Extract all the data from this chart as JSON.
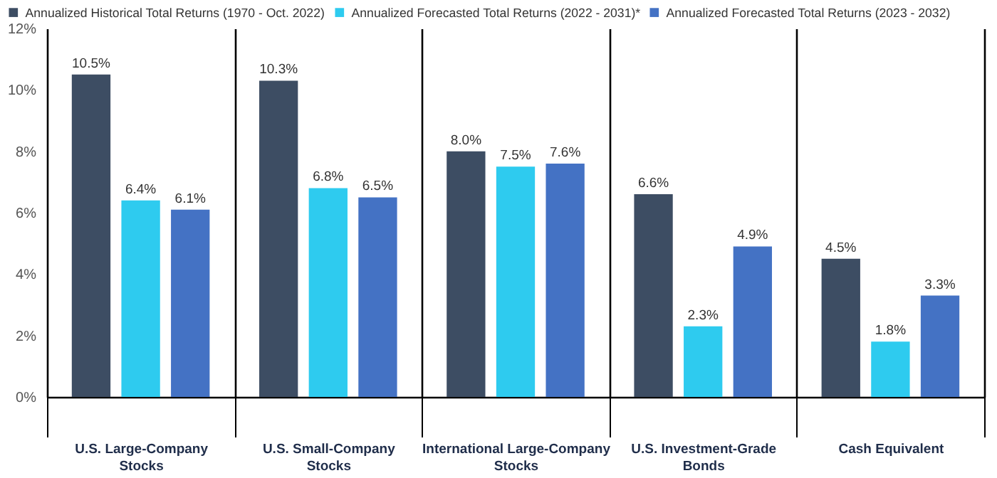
{
  "chart_data": {
    "type": "bar",
    "categories": [
      "U.S. Large-Company Stocks",
      "U.S. Small-Company Stocks",
      "International Large-Company Stocks",
      "U.S. Investment-Grade Bonds",
      "Cash Equivalent"
    ],
    "series": [
      {
        "name": "Annualized Historical Total Returns (1970 - Oct. 2022)",
        "color": "#3d4d63",
        "values": [
          10.5,
          10.3,
          8.0,
          6.6,
          4.5
        ]
      },
      {
        "name": "Annualized Forecasted Total Returns (2022 - 2031)*",
        "color": "#2ecbef",
        "values": [
          6.4,
          6.8,
          7.5,
          2.3,
          1.8
        ]
      },
      {
        "name": "Annualized Forecasted Total Returns (2023 - 2032)",
        "color": "#4472c4",
        "values": [
          6.1,
          6.5,
          7.6,
          4.9,
          3.3
        ]
      }
    ],
    "value_labels": [
      [
        "10.5%",
        "10.3%",
        "8.0%",
        "6.6%",
        "4.5%"
      ],
      [
        "6.4%",
        "6.8%",
        "7.5%",
        "2.3%",
        "1.8%"
      ],
      [
        "6.1%",
        "6.5%",
        "7.6%",
        "4.9%",
        "3.3%"
      ]
    ],
    "ylim": [
      0,
      12
    ],
    "yticks": [
      {
        "value": 0,
        "label": "0%"
      },
      {
        "value": 2,
        "label": "2%"
      },
      {
        "value": 4,
        "label": "4%"
      },
      {
        "value": 6,
        "label": "6%"
      },
      {
        "value": 8,
        "label": "8%"
      },
      {
        "value": 10,
        "label": "10%"
      },
      {
        "value": 12,
        "label": "12%"
      }
    ],
    "grid": "x",
    "legend": "top left"
  }
}
